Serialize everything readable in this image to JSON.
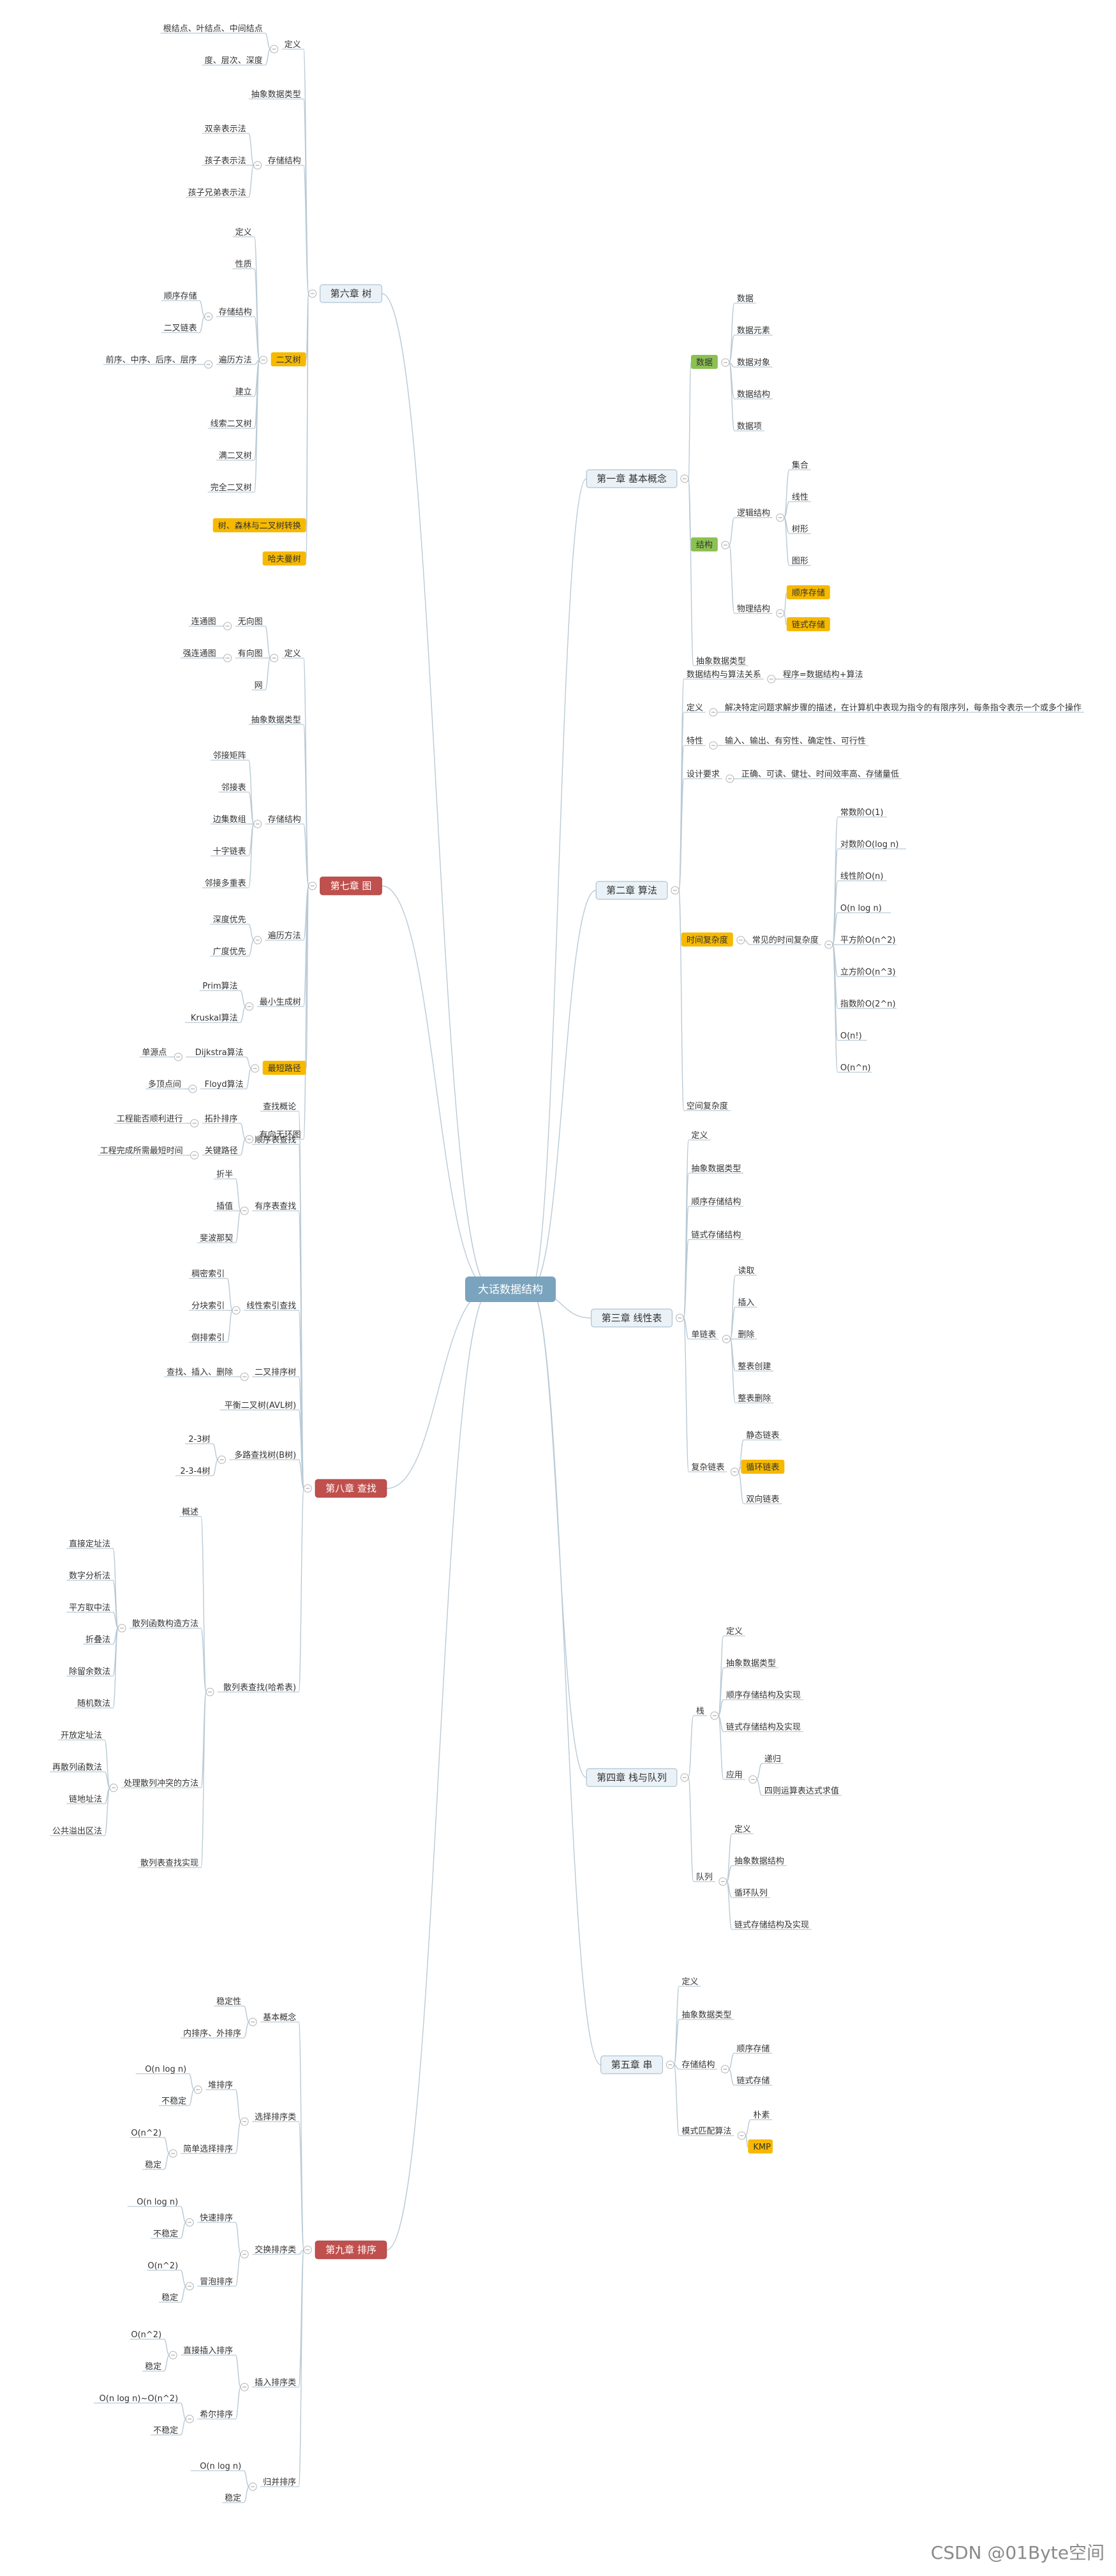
{
  "root": {
    "label": "大话数据结构",
    "color": "#7aa3be"
  },
  "colors": {
    "chapter_right": "#eaf2f8",
    "chapter_left": "#c0504d",
    "green": "#8cc152",
    "amber": "#f6b900"
  },
  "chapters": [
    {
      "label": "第一章 基本概念",
      "side": "right",
      "style": "light",
      "children": [
        {
          "label": "数据",
          "hl": "green",
          "children": [
            {
              "label": "数据"
            },
            {
              "label": "数据元素"
            },
            {
              "label": "数据对象"
            },
            {
              "label": "数据结构"
            },
            {
              "label": "数据项"
            }
          ]
        },
        {
          "label": "结构",
          "hl": "green",
          "children": [
            {
              "label": "逻辑结构",
              "children": [
                {
                  "label": "集合"
                },
                {
                  "label": "线性"
                },
                {
                  "label": "树形"
                },
                {
                  "label": "图形"
                }
              ]
            },
            {
              "label": "物理结构",
              "children": [
                {
                  "label": "顺序存储",
                  "hl": "amber"
                },
                {
                  "label": "链式存储",
                  "hl": "amber"
                }
              ]
            }
          ]
        },
        {
          "label": "抽象数据类型"
        }
      ]
    },
    {
      "label": "第二章 算法",
      "side": "right",
      "style": "light",
      "children": [
        {
          "label": "数据结构与算法关系",
          "children": [
            {
              "label": "程序=数据结构+算法"
            }
          ]
        },
        {
          "label": "定义",
          "children": [
            {
              "label": "解决特定问题求解步骤的描述，在计算机中表现为指令的有限序列，每条指令表示一个或多个操作"
            }
          ]
        },
        {
          "label": "特性",
          "children": [
            {
              "label": "输入、输出、有穷性、确定性、可行性"
            }
          ]
        },
        {
          "label": "设计要求",
          "children": [
            {
              "label": "正确、可读、健壮、时间效率高、存储量低"
            }
          ]
        },
        {
          "label": "时间复杂度",
          "hl": "amber",
          "children": [
            {
              "label": "常见的时间复杂度",
              "children": [
                {
                  "label": "常数阶O(1)"
                },
                {
                  "label": "对数阶O(log n)"
                },
                {
                  "label": "线性阶O(n)"
                },
                {
                  "label": "O(n log n)"
                },
                {
                  "label": "平方阶O(n^2)"
                },
                {
                  "label": "立方阶O(n^3)"
                },
                {
                  "label": "指数阶O(2^n)"
                },
                {
                  "label": "O(n!)"
                },
                {
                  "label": "O(n^n)"
                }
              ]
            }
          ]
        },
        {
          "label": "空间复杂度"
        }
      ]
    },
    {
      "label": "第三章 线性表",
      "side": "right",
      "style": "light",
      "children": [
        {
          "label": "定义"
        },
        {
          "label": "抽象数据类型"
        },
        {
          "label": "顺序存储结构"
        },
        {
          "label": "链式存储结构"
        },
        {
          "label": "单链表",
          "children": [
            {
              "label": "读取"
            },
            {
              "label": "插入"
            },
            {
              "label": "删除"
            },
            {
              "label": "整表创建"
            },
            {
              "label": "整表删除"
            }
          ]
        },
        {
          "label": "复杂链表",
          "children": [
            {
              "label": "静态链表"
            },
            {
              "label": "循环链表",
              "hl": "amber"
            },
            {
              "label": "双向链表"
            }
          ]
        }
      ]
    },
    {
      "label": "第四章 栈与队列",
      "side": "right",
      "style": "light",
      "children": [
        {
          "label": "栈",
          "children": [
            {
              "label": "定义"
            },
            {
              "label": "抽象数据类型"
            },
            {
              "label": "顺序存储结构及实现"
            },
            {
              "label": "链式存储结构及实现"
            },
            {
              "label": "应用",
              "children": [
                {
                  "label": "递归"
                },
                {
                  "label": "四则运算表达式求值"
                }
              ]
            }
          ]
        },
        {
          "label": "队列",
          "children": [
            {
              "label": "定义"
            },
            {
              "label": "抽象数据结构"
            },
            {
              "label": "循环队列"
            },
            {
              "label": "链式存储结构及实现"
            }
          ]
        }
      ]
    },
    {
      "label": "第五章 串",
      "side": "right",
      "style": "light",
      "children": [
        {
          "label": "定义"
        },
        {
          "label": "抽象数据类型"
        },
        {
          "label": "存储结构",
          "children": [
            {
              "label": "顺序存储"
            },
            {
              "label": "链式存储"
            }
          ]
        },
        {
          "label": "模式匹配算法",
          "children": [
            {
              "label": "朴素"
            },
            {
              "label": "KMP",
              "hl": "amber"
            }
          ]
        }
      ]
    },
    {
      "label": "第六章 树",
      "side": "left",
      "style": "light",
      "children": [
        {
          "label": "定义",
          "children": [
            {
              "label": "根结点、叶结点、中间结点"
            },
            {
              "label": "度、层次、深度"
            }
          ]
        },
        {
          "label": "抽象数据类型"
        },
        {
          "label": "存储结构",
          "children": [
            {
              "label": "双亲表示法"
            },
            {
              "label": "孩子表示法"
            },
            {
              "label": "孩子兄弟表示法"
            }
          ]
        },
        {
          "label": "二叉树",
          "hl": "amber",
          "children": [
            {
              "label": "定义"
            },
            {
              "label": "性质"
            },
            {
              "label": "存储结构",
              "children": [
                {
                  "label": "顺序存储"
                },
                {
                  "label": "二叉链表"
                }
              ]
            },
            {
              "label": "遍历方法",
              "children": [
                {
                  "label": "前序、中序、后序、层序"
                }
              ]
            },
            {
              "label": "建立"
            },
            {
              "label": "线索二叉树"
            },
            {
              "label": "满二叉树"
            },
            {
              "label": "完全二叉树"
            }
          ]
        },
        {
          "label": "树、森林与二叉树转换",
          "hl": "amber"
        },
        {
          "label": "哈夫曼树",
          "hl": "amber"
        }
      ]
    },
    {
      "label": "第七章 图",
      "side": "left",
      "style": "red",
      "children": [
        {
          "label": "定义",
          "children": [
            {
              "label": "无向图",
              "children": [
                {
                  "label": "连通图"
                }
              ]
            },
            {
              "label": "有向图",
              "children": [
                {
                  "label": "强连通图"
                }
              ]
            },
            {
              "label": "网"
            }
          ]
        },
        {
          "label": "抽象数据类型"
        },
        {
          "label": "存储结构",
          "children": [
            {
              "label": "邻接矩阵"
            },
            {
              "label": "邻接表"
            },
            {
              "label": "边集数组"
            },
            {
              "label": "十字链表"
            },
            {
              "label": "邻接多重表"
            }
          ]
        },
        {
          "label": "遍历方法",
          "children": [
            {
              "label": "深度优先"
            },
            {
              "label": "广度优先"
            }
          ]
        },
        {
          "label": "最小生成树",
          "children": [
            {
              "label": "Prim算法"
            },
            {
              "label": "Kruskal算法"
            }
          ]
        },
        {
          "label": "最短路径",
          "hl": "amber",
          "children": [
            {
              "label": "Dijkstra算法",
              "children": [
                {
                  "label": "单源点"
                }
              ]
            },
            {
              "label": "Floyd算法",
              "children": [
                {
                  "label": "多顶点间"
                }
              ]
            }
          ]
        },
        {
          "label": "有向无环图",
          "children": [
            {
              "label": "拓扑排序",
              "children": [
                {
                  "label": "工程能否顺利进行"
                }
              ]
            },
            {
              "label": "关键路径",
              "children": [
                {
                  "label": "工程完成所需最短时间"
                }
              ]
            }
          ]
        }
      ]
    },
    {
      "label": "第八章 查找",
      "side": "left",
      "style": "red",
      "children": [
        {
          "label": "查找概论"
        },
        {
          "label": "顺序表查找"
        },
        {
          "label": "有序表查找",
          "children": [
            {
              "label": "折半"
            },
            {
              "label": "插值"
            },
            {
              "label": "斐波那契"
            }
          ]
        },
        {
          "label": "线性索引查找",
          "children": [
            {
              "label": "稠密索引"
            },
            {
              "label": "分块索引"
            },
            {
              "label": "倒排索引"
            }
          ]
        },
        {
          "label": "二叉排序树",
          "children": [
            {
              "label": "查找、插入、删除"
            }
          ]
        },
        {
          "label": "平衡二叉树(AVL树)"
        },
        {
          "label": "多路查找树(B树)",
          "children": [
            {
              "label": "2-3树"
            },
            {
              "label": "2-3-4树"
            }
          ]
        },
        {
          "label": "散列表查找(哈希表)",
          "children": [
            {
              "label": "概述"
            },
            {
              "label": "散列函数构造方法",
              "children": [
                {
                  "label": "直接定址法"
                },
                {
                  "label": "数字分析法"
                },
                {
                  "label": "平方取中法"
                },
                {
                  "label": "折叠法"
                },
                {
                  "label": "除留余数法"
                },
                {
                  "label": "随机数法"
                }
              ]
            },
            {
              "label": "处理散列冲突的方法",
              "children": [
                {
                  "label": "开放定址法"
                },
                {
                  "label": "再散列函数法"
                },
                {
                  "label": "链地址法"
                },
                {
                  "label": "公共溢出区法"
                }
              ]
            },
            {
              "label": "散列表查找实现"
            }
          ]
        }
      ]
    },
    {
      "label": "第九章 排序",
      "side": "left",
      "style": "red",
      "children": [
        {
          "label": "基本概念",
          "children": [
            {
              "label": "稳定性"
            },
            {
              "label": "内排序、外排序"
            }
          ]
        },
        {
          "label": "选择排序类",
          "children": [
            {
              "label": "堆排序",
              "children": [
                {
                  "label": "O(n log n)"
                },
                {
                  "label": "不稳定"
                }
              ]
            },
            {
              "label": "简单选择排序",
              "children": [
                {
                  "label": "O(n^2)"
                },
                {
                  "label": "稳定"
                }
              ]
            }
          ]
        },
        {
          "label": "交换排序类",
          "children": [
            {
              "label": "快速排序",
              "children": [
                {
                  "label": "O(n log n)"
                },
                {
                  "label": "不稳定"
                }
              ]
            },
            {
              "label": "冒泡排序",
              "children": [
                {
                  "label": "O(n^2)"
                },
                {
                  "label": "稳定"
                }
              ]
            }
          ]
        },
        {
          "label": "插入排序类",
          "children": [
            {
              "label": "直接插入排序",
              "children": [
                {
                  "label": "O(n^2)"
                },
                {
                  "label": "稳定"
                }
              ]
            },
            {
              "label": "希尔排序",
              "children": [
                {
                  "label": "O(n log n)~O(n^2)"
                },
                {
                  "label": "不稳定"
                }
              ]
            }
          ]
        },
        {
          "label": "归并排序",
          "children": [
            {
              "label": "O(n log n)"
            },
            {
              "label": "稳定"
            }
          ]
        }
      ]
    }
  ],
  "watermark": "CSDN @01Byte空间"
}
